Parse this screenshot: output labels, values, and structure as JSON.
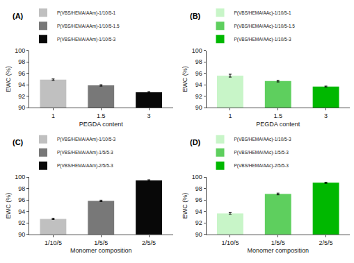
{
  "chart_data": [
    {
      "type": "bar",
      "title": "(A)",
      "categories": [
        "1",
        "1.5",
        "3"
      ],
      "series": [
        {
          "name": "P(VBS/HEMA/AAm)-1/10/5-1",
          "color": "#c0c0c0",
          "values": [
            94.9,
            null,
            null
          ],
          "errors": [
            0.12,
            null,
            null
          ]
        },
        {
          "name": "P(VBS/HEMA/AAm)-1/10/5-1.5",
          "color": "#787878",
          "values": [
            null,
            93.9,
            null
          ],
          "errors": [
            null,
            0.12,
            null
          ]
        },
        {
          "name": "P(VBS/HEMA/AAm)-1/10/5-3",
          "color": "#080808",
          "values": [
            null,
            null,
            92.7
          ],
          "errors": [
            null,
            null,
            0.12
          ]
        }
      ],
      "xlabel": "PEGDA content",
      "ylabel": "EWC (%)",
      "ylim": [
        90,
        100
      ],
      "yticks": [
        90,
        92,
        94,
        96,
        98,
        100
      ],
      "grid": false,
      "legend": "top"
    },
    {
      "type": "bar",
      "title": "(B)",
      "categories": [
        "1",
        "1.5",
        "3"
      ],
      "series": [
        {
          "name": "P(VBS/HEMA/AAc)-1/10/5-1",
          "color": "#c8f5c8",
          "values": [
            95.6,
            null,
            null
          ],
          "errors": [
            0.25,
            null,
            null
          ]
        },
        {
          "name": "P(VBS/HEMA/AAc)-1/10/5-1.5",
          "color": "#5ecf5e",
          "values": [
            null,
            94.65,
            null
          ],
          "errors": [
            null,
            0.15,
            null
          ]
        },
        {
          "name": "P(VBS/HEMA/AAc)-1/10/5-3",
          "color": "#00b800",
          "values": [
            null,
            null,
            93.7
          ],
          "errors": [
            null,
            null,
            0.08
          ]
        }
      ],
      "xlabel": "PEGDA content",
      "ylabel": "EWC (%)",
      "ylim": [
        90,
        100
      ],
      "yticks": [
        90,
        92,
        94,
        96,
        98,
        100
      ],
      "grid": false,
      "legend": "top"
    },
    {
      "type": "bar",
      "title": "(C)",
      "categories": [
        "1/10/5",
        "1/5/5",
        "2/5/5"
      ],
      "series": [
        {
          "name": "P(VBS/HEMA/AAm)-1/10/5-3",
          "color": "#c0c0c0",
          "values": [
            92.7,
            null,
            null
          ],
          "errors": [
            0.12,
            null,
            null
          ]
        },
        {
          "name": "P(VBS/HEMA/AAm)-1/5/5-3",
          "color": "#787878",
          "values": [
            null,
            95.85,
            null
          ],
          "errors": [
            null,
            0.12,
            null
          ]
        },
        {
          "name": "P(VBS/HEMA/AAm)-2/5/5-3",
          "color": "#080808",
          "values": [
            null,
            null,
            99.4
          ],
          "errors": [
            null,
            null,
            0.12
          ]
        }
      ],
      "xlabel": "Monomer composition",
      "ylabel": "EWC (%)",
      "ylim": [
        90,
        100
      ],
      "yticks": [
        90,
        92,
        94,
        96,
        98,
        100
      ],
      "grid": false,
      "legend": "top"
    },
    {
      "type": "bar",
      "title": "(D)",
      "categories": [
        "1/10/5",
        "1/5/5",
        "2/5/5"
      ],
      "series": [
        {
          "name": "P(VBS/HEMA/AAc)-1/10/5-3",
          "color": "#c8f5c8",
          "values": [
            93.65,
            null,
            null
          ],
          "errors": [
            0.15,
            null,
            null
          ]
        },
        {
          "name": "P(VBS/HEMA/AAc)-1/5/5-3",
          "color": "#5ecf5e",
          "values": [
            null,
            97.05,
            null
          ],
          "errors": [
            null,
            0.15,
            null
          ]
        },
        {
          "name": "P(VBS/HEMA/AAc)-2/5/5-3",
          "color": "#00b800",
          "values": [
            null,
            null,
            99.0
          ],
          "errors": [
            null,
            null,
            0.1
          ]
        }
      ],
      "xlabel": "Monomer composition",
      "ylabel": "EWC (%)",
      "ylim": [
        90,
        100
      ],
      "yticks": [
        90,
        92,
        94,
        96,
        98,
        100
      ],
      "grid": false,
      "legend": "top"
    }
  ]
}
